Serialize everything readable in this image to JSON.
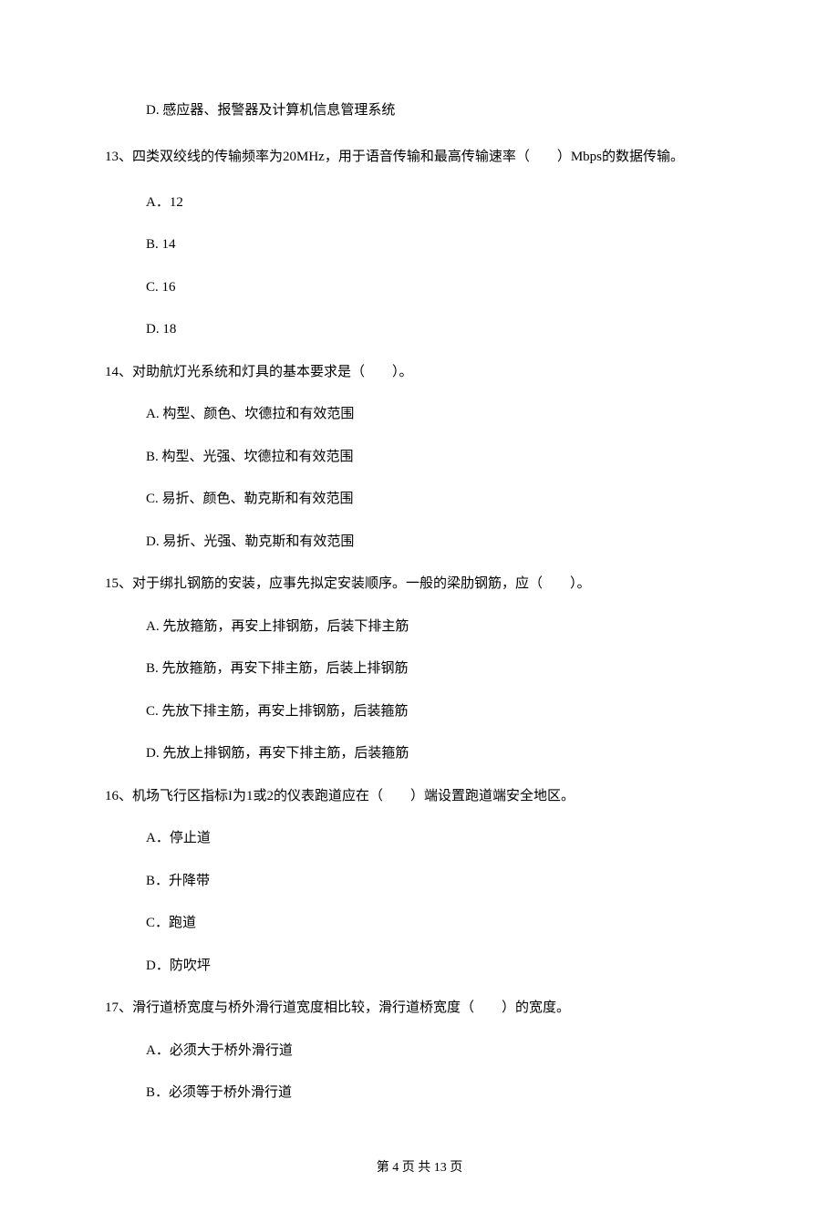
{
  "option_d_top": "D. 感应器、报警器及计算机信息管理系统",
  "questions": {
    "q13": {
      "stem": "13、四类双绞线的传输频率为20MHz，用于语音传输和最高传输速率（　　）Mbps的数据传输。",
      "options": {
        "a": "A．12",
        "b": "B. 14",
        "c": "C. 16",
        "d": "D. 18"
      }
    },
    "q14": {
      "stem": "14、对助航灯光系统和灯具的基本要求是（　　）。",
      "options": {
        "a": "A. 构型、颜色、坎德拉和有效范围",
        "b": "B. 构型、光强、坎德拉和有效范围",
        "c": "C. 易折、颜色、勒克斯和有效范围",
        "d": "D. 易折、光强、勒克斯和有效范围"
      }
    },
    "q15": {
      "stem": "15、对于绑扎钢筋的安装，应事先拟定安装顺序。一般的梁肋钢筋，应（　　）。",
      "options": {
        "a": "A. 先放箍筋，再安上排钢筋，后装下排主筋",
        "b": "B. 先放箍筋，再安下排主筋，后装上排钢筋",
        "c": "C. 先放下排主筋，再安上排钢筋，后装箍筋",
        "d": "D. 先放上排钢筋，再安下排主筋，后装箍筋"
      }
    },
    "q16": {
      "stem": "16、机场飞行区指标I为1或2的仪表跑道应在（　　）端设置跑道端安全地区。",
      "options": {
        "a": "A．停止道",
        "b": "B．升降带",
        "c": "C．跑道",
        "d": "D．防吹坪"
      }
    },
    "q17": {
      "stem": "17、滑行道桥宽度与桥外滑行道宽度相比较，滑行道桥宽度（　　）的宽度。",
      "options": {
        "a": "A．必须大于桥外滑行道",
        "b": "B．必须等于桥外滑行道"
      }
    }
  },
  "footer": {
    "text": "第 4 页 共 13 页"
  }
}
